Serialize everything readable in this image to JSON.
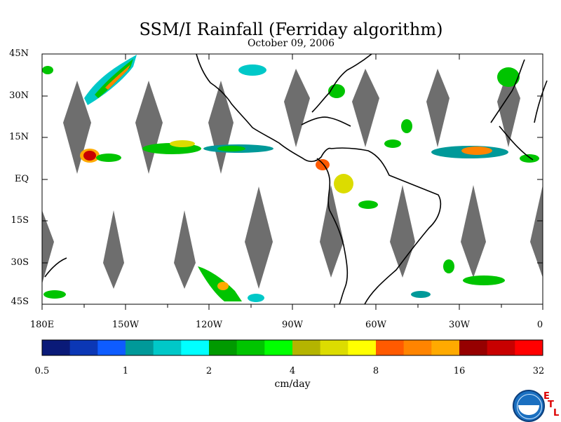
{
  "title": "SSM/I Rainfall (Ferriday algorithm)",
  "date": "October 09, 2006",
  "axes": {
    "lat_labels": [
      "45N",
      "30N",
      "15N",
      "EQ",
      "15S",
      "30S",
      "45S"
    ],
    "lon_labels": [
      "180E",
      "150W",
      "120W",
      "90W",
      "60W",
      "30W",
      "0"
    ],
    "lon_range": [
      -180,
      0
    ],
    "lat_range": [
      -45,
      45
    ]
  },
  "colorbar": {
    "unit": "cm/day",
    "tick_labels": [
      "0.5",
      "1",
      "2",
      "4",
      "8",
      "16",
      "32"
    ],
    "colors": [
      "#0a1a78",
      "#0b37b5",
      "#0e5cff",
      "#009999",
      "#00c8c8",
      "#00ffff",
      "#009a00",
      "#00c400",
      "#00ff00",
      "#b4b400",
      "#dcdc00",
      "#ffff00",
      "#ff5a00",
      "#ff8400",
      "#ffaa00",
      "#960000",
      "#c80000",
      "#ff0000"
    ]
  },
  "legend": {
    "no_data_color": "#6e6e6e"
  },
  "logo": {
    "text": "NOAA",
    "etl_letters": [
      "E",
      "T",
      "L"
    ]
  }
}
